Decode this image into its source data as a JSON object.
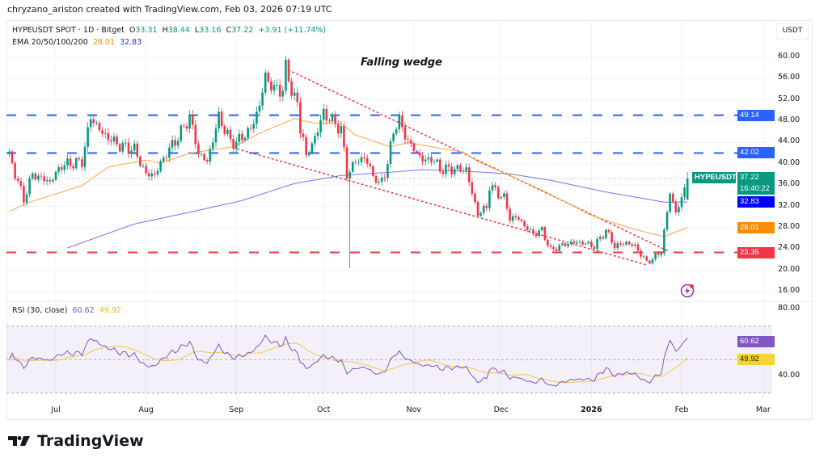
{
  "header": {
    "credit": "chryzano_ariston created with TradingView.com, Feb 03, 2026 07:19 UTC"
  },
  "legend": {
    "symbol_line": "HYPEUSDT SPOT · 1D · Bitget",
    "open_label": "O",
    "open": "33.31",
    "high_label": "H",
    "high": "38.44",
    "low_label": "L",
    "low": "33.16",
    "close_label": "C",
    "close": "37.22",
    "change": "+3.91 (+11.74%)",
    "ema_label": "EMA 20/50/100/200",
    "ema_values": [
      "28.01",
      "32.83"
    ]
  },
  "rsi_legend": {
    "label": "RSI (30, close)",
    "rsi": "60.62",
    "ma": "49.92"
  },
  "price_axis": {
    "currency": "USDT",
    "ticks": [
      "60.00",
      "56.00",
      "52.00",
      "48.00",
      "44.00",
      "40.00",
      "36.00",
      "32.00",
      "28.00",
      "24.00",
      "20.00",
      "16.00"
    ],
    "tags": [
      {
        "name": "resistance-upper",
        "value": "49.14",
        "color": "#2962ff"
      },
      {
        "name": "resistance-lower",
        "value": "42.02",
        "color": "#2962ff"
      },
      {
        "name": "ema-200",
        "value": "32.83",
        "color": "#0000ff"
      },
      {
        "name": "ema-50",
        "value": "28.01",
        "color": "#ff8c00"
      },
      {
        "name": "support",
        "value": "23.35",
        "color": "#f23645"
      }
    ],
    "last_price": {
      "symbol": "HYPEUSDT",
      "value": "37.22",
      "countdown": "16:40:22",
      "color": "#089981"
    }
  },
  "rsi_axis": {
    "ticks": [
      "80.00",
      "40.00"
    ],
    "tags": [
      {
        "name": "rsi-value",
        "value": "60.62",
        "color": "#7e57c2"
      },
      {
        "name": "rsi-ma-value",
        "value": "49.92",
        "color": "#f7d32e"
      }
    ]
  },
  "time_axis": {
    "ticks": [
      {
        "label": "Jul",
        "date": "2025-07-01"
      },
      {
        "label": "Aug",
        "date": "2025-08-01"
      },
      {
        "label": "Sep",
        "date": "2025-09-01"
      },
      {
        "label": "Oct",
        "date": "2025-10-01"
      },
      {
        "label": "Nov",
        "date": "2025-11-01"
      },
      {
        "label": "Dec",
        "date": "2025-12-01"
      },
      {
        "label": "2026",
        "date": "2026-01-01",
        "bold": true
      },
      {
        "label": "Feb",
        "date": "2026-02-01"
      },
      {
        "label": "Mar",
        "date": "2026-03-01"
      }
    ]
  },
  "annotation": {
    "wedge_title": "Falling wedge"
  },
  "footer": {
    "brand": "TradingView"
  },
  "chart_data": {
    "type": "candlestick",
    "symbol": "HYPEUSDT",
    "interval": "1D",
    "exchange": "Bitget",
    "ylim": [
      14,
      62
    ],
    "y_scale": "linear",
    "grid": true,
    "colors": {
      "up": "#089981",
      "down": "#f23645",
      "ema_short": "#f7a74a",
      "ema_long": "#7b6ff0",
      "rsi": "#7e57c2",
      "rsi_ma": "#f2c94c",
      "level_blue": "#2962ff",
      "level_red": "#f23645"
    },
    "approx_closes": [
      [
        "2025-06-15",
        41.5
      ],
      [
        "2025-06-20",
        33.3
      ],
      [
        "2025-06-23",
        38
      ],
      [
        "2025-06-29",
        36.6
      ],
      [
        "2025-07-03",
        39.7
      ],
      [
        "2025-07-10",
        40.4
      ],
      [
        "2025-07-13",
        48.8
      ],
      [
        "2025-07-17",
        45.7
      ],
      [
        "2025-07-23",
        43.4
      ],
      [
        "2025-07-28",
        42.7
      ],
      [
        "2025-08-01",
        38
      ],
      [
        "2025-08-04",
        38
      ],
      [
        "2025-08-08",
        42
      ],
      [
        "2025-08-12",
        45
      ],
      [
        "2025-08-16",
        48.8
      ],
      [
        "2025-08-19",
        42
      ],
      [
        "2025-08-22",
        40.4
      ],
      [
        "2025-08-26",
        48.8
      ],
      [
        "2025-08-30",
        44.2
      ],
      [
        "2025-09-01",
        44
      ],
      [
        "2025-09-06",
        46.5
      ],
      [
        "2025-09-09",
        51
      ],
      [
        "2025-09-11",
        56.4
      ],
      [
        "2025-09-14",
        54
      ],
      [
        "2025-09-17",
        54
      ],
      [
        "2025-09-18",
        57.9
      ],
      [
        "2025-09-20",
        54
      ],
      [
        "2025-09-22",
        51
      ],
      [
        "2025-09-23",
        46.5
      ],
      [
        "2025-09-24",
        45
      ],
      [
        "2025-09-25",
        41.2
      ],
      [
        "2025-09-28",
        45
      ],
      [
        "2025-10-01",
        49.5
      ],
      [
        "2025-10-04",
        48
      ],
      [
        "2025-10-07",
        46.5
      ],
      [
        "2025-10-09",
        38
      ],
      [
        "2025-10-12",
        40.4
      ],
      [
        "2025-10-15",
        41.2
      ],
      [
        "2025-10-18",
        38
      ],
      [
        "2025-10-20",
        35.9
      ],
      [
        "2025-10-23",
        39.7
      ],
      [
        "2025-10-25",
        46.5
      ],
      [
        "2025-10-27",
        48
      ],
      [
        "2025-10-30",
        44.2
      ],
      [
        "2025-11-02",
        42
      ],
      [
        "2025-11-05",
        40.4
      ],
      [
        "2025-11-07",
        41.2
      ],
      [
        "2025-11-10",
        39
      ],
      [
        "2025-11-14",
        39
      ],
      [
        "2025-11-19",
        39
      ],
      [
        "2025-11-21",
        34.4
      ],
      [
        "2025-11-23",
        30.6
      ],
      [
        "2025-11-26",
        31.8
      ],
      [
        "2025-11-27",
        35.9
      ],
      [
        "2025-11-30",
        34.4
      ],
      [
        "2025-12-02",
        33.6
      ],
      [
        "2025-12-04",
        29.8
      ],
      [
        "2025-12-07",
        29.8
      ],
      [
        "2025-12-09",
        28.3
      ],
      [
        "2025-12-12",
        26.8
      ],
      [
        "2025-12-15",
        27.5
      ],
      [
        "2025-12-18",
        23.7
      ],
      [
        "2025-12-21",
        24.5
      ],
      [
        "2025-12-25",
        25.2
      ],
      [
        "2025-12-29",
        25.2
      ],
      [
        "2026-01-02",
        24.5
      ],
      [
        "2026-01-06",
        27.5
      ],
      [
        "2026-01-09",
        24.5
      ],
      [
        "2026-01-13",
        25.2
      ],
      [
        "2026-01-16",
        24.5
      ],
      [
        "2026-01-20",
        21.5
      ],
      [
        "2026-01-23",
        22.5
      ],
      [
        "2026-01-25",
        23.7
      ],
      [
        "2026-01-27",
        30.6
      ],
      [
        "2026-01-28",
        35
      ],
      [
        "2026-01-30",
        30.6
      ],
      [
        "2026-02-01",
        33.6
      ],
      [
        "2026-02-03",
        37.22
      ]
    ],
    "last_candle": {
      "date": "2026-02-03",
      "open": 33.31,
      "high": 38.44,
      "low": 33.16,
      "close": 37.22
    },
    "spike_low": {
      "date": "2025-10-10",
      "low": 20.4
    },
    "ema_short": [
      [
        "2025-06-15",
        31
      ],
      [
        "2025-06-21",
        32.6
      ],
      [
        "2025-07-10",
        35.9
      ],
      [
        "2025-07-19",
        39.4
      ],
      [
        "2025-08-01",
        40.7
      ],
      [
        "2025-08-06",
        40.1
      ],
      [
        "2025-08-16",
        42
      ],
      [
        "2025-08-31",
        43.2
      ],
      [
        "2025-09-10",
        46
      ],
      [
        "2025-09-21",
        48.5
      ],
      [
        "2025-09-28",
        47.6
      ],
      [
        "2025-10-07",
        47.6
      ],
      [
        "2025-10-12",
        45.4
      ],
      [
        "2025-10-24",
        43.2
      ],
      [
        "2025-10-30",
        44
      ],
      [
        "2025-11-12",
        42.7
      ],
      [
        "2025-11-18",
        42.2
      ],
      [
        "2025-11-23",
        40.4
      ],
      [
        "2025-12-04",
        37.8
      ],
      [
        "2025-12-16",
        34.8
      ],
      [
        "2026-01-01",
        30.3
      ],
      [
        "2026-01-15",
        27.8
      ],
      [
        "2026-01-26",
        26.3
      ],
      [
        "2026-01-29",
        27
      ],
      [
        "2026-02-03",
        28.01
      ]
    ],
    "ema_long": [
      [
        "2025-07-05",
        24.2
      ],
      [
        "2025-07-28",
        28.7
      ],
      [
        "2025-08-16",
        30.9
      ],
      [
        "2025-09-03",
        33.1
      ],
      [
        "2025-09-21",
        36.3
      ],
      [
        "2025-10-07",
        37.8
      ],
      [
        "2025-10-26",
        38.5
      ],
      [
        "2025-11-04",
        38.9
      ],
      [
        "2025-11-19",
        38.6
      ],
      [
        "2025-12-04",
        38.1
      ],
      [
        "2025-12-18",
        36.9
      ],
      [
        "2026-01-05",
        34.8
      ],
      [
        "2026-01-26",
        32.8
      ],
      [
        "2026-02-03",
        32.83
      ]
    ],
    "horizontal_levels": [
      {
        "value": 49.14,
        "style": "dashed",
        "color": "#2962ff"
      },
      {
        "value": 42.02,
        "style": "dashed",
        "color": "#2962ff"
      },
      {
        "value": 23.35,
        "style": "dashed",
        "color": "#f23645"
      }
    ],
    "wedge_lines": [
      {
        "name": "upper",
        "from": [
          "2025-09-19",
          57.6
        ],
        "to": [
          "2026-01-27",
          23.7
        ]
      },
      {
        "name": "lower",
        "from": [
          "2025-08-31",
          43
        ],
        "to": [
          "2026-01-20",
          21
        ]
      }
    ],
    "rsi": {
      "period": 30,
      "source": "close",
      "ma_length": 14,
      "ylim": [
        20,
        90
      ],
      "band": [
        30,
        70
      ],
      "mid": 50,
      "last": 60.62,
      "ma_last": 49.92
    }
  }
}
